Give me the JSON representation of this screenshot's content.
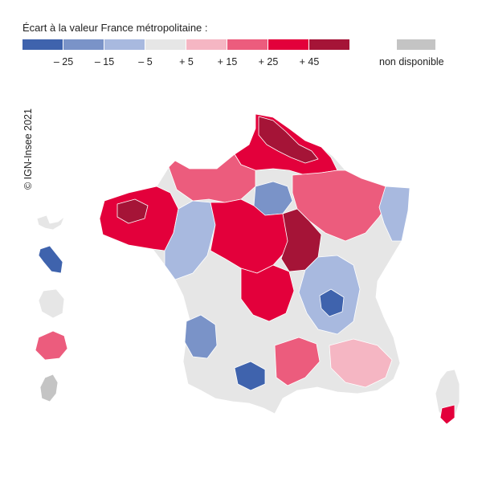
{
  "legend": {
    "title": "Écart à la valeur France métropolitaine :",
    "classes": [
      {
        "color": "#3f63ad"
      },
      {
        "color": "#7a93c8"
      },
      {
        "color": "#a8b9df"
      },
      {
        "color": "#e6e6e6"
      },
      {
        "color": "#f5b6c3"
      },
      {
        "color": "#ec5c7d"
      },
      {
        "color": "#e3003b"
      },
      {
        "color": "#a51437"
      }
    ],
    "breaks": [
      "– 25",
      "– 15",
      "– 5",
      "+ 5",
      "+ 15",
      "+ 25",
      "+ 45"
    ],
    "na_label": "non disponible",
    "na_color": "#c4c4c4"
  },
  "credit": "© IGN-Insee 2021",
  "map": {
    "regions": [
      {
        "id": "metropole",
        "fill": "#e6e6e6"
      },
      {
        "id": "nord",
        "fill": "#e3003b"
      },
      {
        "id": "nord-core",
        "fill": "#a51437"
      },
      {
        "id": "bretagne",
        "fill": "#e3003b"
      },
      {
        "id": "bretagne-core",
        "fill": "#a51437"
      },
      {
        "id": "centre",
        "fill": "#e3003b"
      },
      {
        "id": "bourgogne",
        "fill": "#a51437"
      },
      {
        "id": "normandie",
        "fill": "#ec5c7d"
      },
      {
        "id": "grand-est",
        "fill": "#ec5c7d"
      },
      {
        "id": "auvergne",
        "fill": "#e3003b"
      },
      {
        "id": "alpes",
        "fill": "#3f63ad"
      },
      {
        "id": "toulouse",
        "fill": "#3f63ad"
      },
      {
        "id": "ile-de-france",
        "fill": "#7a93c8"
      },
      {
        "id": "sud-ouest",
        "fill": "#7a93c8"
      },
      {
        "id": "rhone",
        "fill": "#a8b9df"
      },
      {
        "id": "alsace",
        "fill": "#a8b9df"
      },
      {
        "id": "languedoc",
        "fill": "#ec5c7d"
      },
      {
        "id": "provence",
        "fill": "#f5b6c3"
      },
      {
        "id": "pays-de-loire",
        "fill": "#a8b9df"
      },
      {
        "id": "corse",
        "fill": "#e6e6e6"
      },
      {
        "id": "corse-sud",
        "fill": "#e3003b"
      },
      {
        "id": "guadeloupe",
        "fill": "#e6e6e6"
      },
      {
        "id": "martinique",
        "fill": "#3f63ad"
      },
      {
        "id": "guyane",
        "fill": "#e6e6e6"
      },
      {
        "id": "reunion",
        "fill": "#ec5c7d"
      },
      {
        "id": "mayotte",
        "fill": "#c4c4c4"
      }
    ]
  }
}
